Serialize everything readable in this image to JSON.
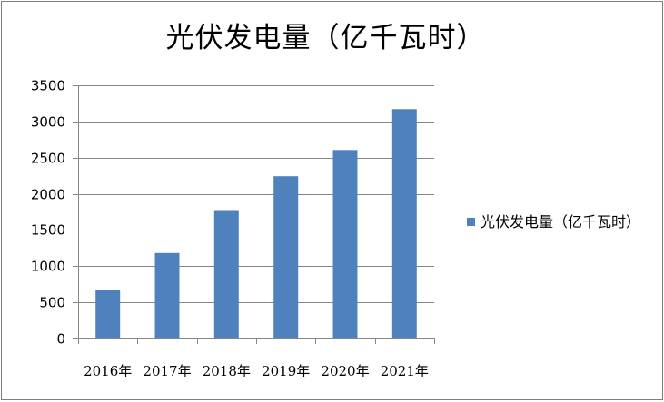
{
  "chart_data": {
    "type": "bar",
    "title": "光伏发电量（亿千瓦时）",
    "categories": [
      "2016年",
      "2017年",
      "2018年",
      "2019年",
      "2020年",
      "2021年"
    ],
    "series": [
      {
        "name": "光伏发电量（亿千瓦时）",
        "values": [
          665,
          1182,
          1775,
          2243,
          2605,
          3170
        ]
      }
    ],
    "ylim": [
      0,
      3500
    ],
    "yticks": [
      0,
      500,
      1000,
      1500,
      2000,
      2500,
      3000,
      3500
    ],
    "grid": true,
    "legend_position": "right",
    "xlabel": "",
    "ylabel": ""
  },
  "colors": {
    "bar": "#4f81bd",
    "gridline": "#868686",
    "axis": "#868686"
  }
}
